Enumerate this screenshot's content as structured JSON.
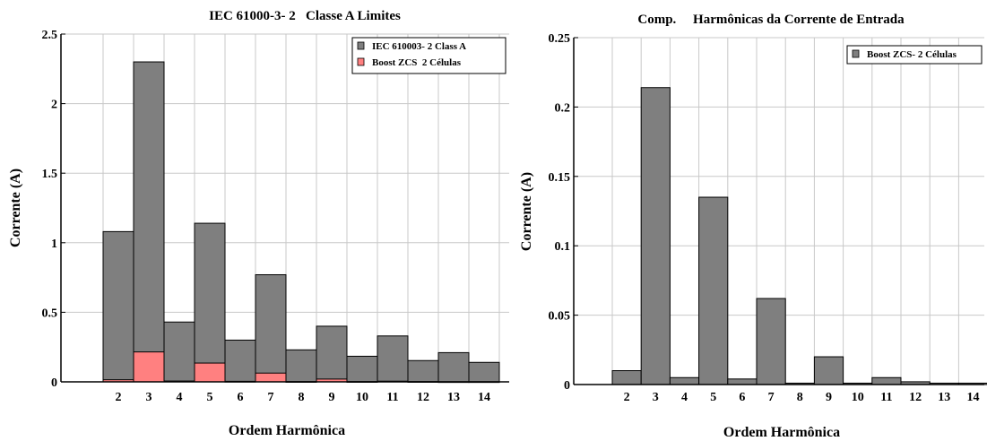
{
  "chart_data": [
    {
      "type": "bar",
      "title": "IEC 61000-3- 2   Classe A Limites",
      "xlabel": "Ordem Harmônica",
      "ylabel": "Corrente (A)",
      "categories": [
        "2",
        "3",
        "4",
        "5",
        "6",
        "7",
        "8",
        "9",
        "10",
        "11",
        "12",
        "13",
        "14"
      ],
      "yticks": [
        "0",
        "0.5",
        "1",
        "1.5",
        "2",
        "2.5"
      ],
      "ylim": [
        0,
        2.5
      ],
      "grid": true,
      "legend_position": "top-right",
      "series": [
        {
          "name": "IEC 610003- 2 Class A",
          "color": "#7f7f7f",
          "values": [
            1.08,
            2.3,
            0.43,
            1.14,
            0.3,
            0.77,
            0.23,
            0.4,
            0.184,
            0.33,
            0.153,
            0.21,
            0.14
          ]
        },
        {
          "name": "Boost ZCS  2 Células",
          "color": "#ff8080",
          "values": [
            0.015,
            0.215,
            0.006,
            0.135,
            0.004,
            0.063,
            0.002,
            0.02,
            0.002,
            0.005,
            0.002,
            0.001,
            0.001
          ]
        }
      ]
    },
    {
      "type": "bar",
      "title": "Comp.     Harmônicas da Corrente de Entrada",
      "xlabel": "Ordem Harmônica",
      "ylabel": "Corrente (A)",
      "categories": [
        "2",
        "3",
        "4",
        "5",
        "6",
        "7",
        "8",
        "9",
        "10",
        "11",
        "12",
        "13",
        "14"
      ],
      "yticks": [
        "0",
        "0.05",
        "0.1",
        "0.15",
        "0.2",
        "0.25"
      ],
      "ylim": [
        0,
        0.25
      ],
      "grid": true,
      "legend_position": "top-right",
      "series": [
        {
          "name": "Boost ZCS- 2 Células",
          "color": "#7f7f7f",
          "values": [
            0.01,
            0.214,
            0.005,
            0.135,
            0.004,
            0.062,
            0.001,
            0.02,
            0.001,
            0.005,
            0.002,
            0.001,
            0.001
          ]
        }
      ]
    }
  ]
}
